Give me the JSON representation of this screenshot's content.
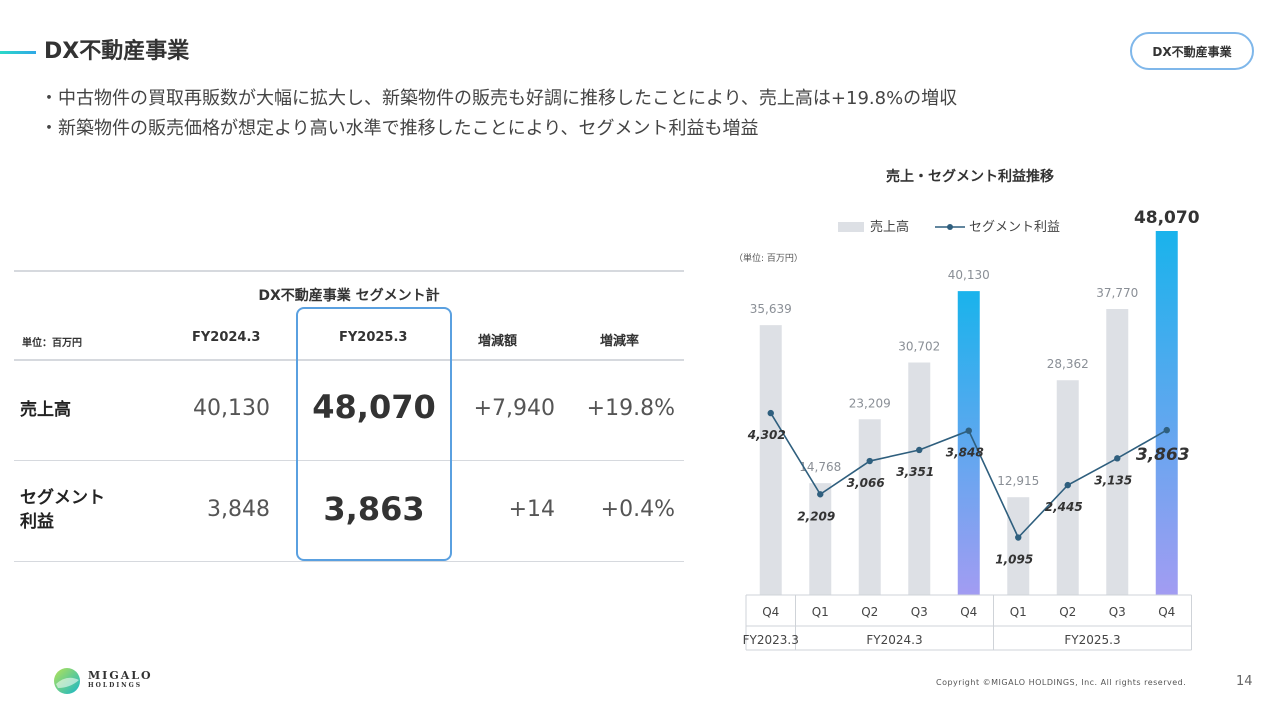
{
  "header": {
    "title": "DX不動産事業",
    "badge": "DX不動産事業"
  },
  "bullets": [
    "・中古物件の買取再販数が大幅に拡大し、新築物件の販売も好調に推移したことにより、売上高は+19.8%の増収",
    "・新築物件の販売価格が想定より高い水準で推移したことにより、セグメント利益も増益"
  ],
  "table": {
    "caption": "DX不動産事業 セグメント計",
    "unit": "単位：百万円",
    "columns": [
      "FY2024.3",
      "FY2025.3",
      "増減額",
      "増減率"
    ],
    "rows": [
      {
        "label": "売上高",
        "fy2024": "40,130",
        "fy2025": "48,070",
        "diff": "+7,940",
        "rate": "+19.8%"
      },
      {
        "label_line1": "セグメント",
        "label_line2": "利益",
        "fy2024": "3,848",
        "fy2025": "3,863",
        "diff": "+14",
        "rate": "+0.4%"
      }
    ]
  },
  "chart_data": {
    "type": "bar",
    "title": "売上・セグメント利益推移",
    "unit_label": "（単位: 百万円）",
    "categories": [
      "Q4",
      "Q1",
      "Q2",
      "Q3",
      "Q4",
      "Q1",
      "Q2",
      "Q3",
      "Q4"
    ],
    "groups": [
      {
        "label": "FY2023.3",
        "span": [
          0,
          0
        ]
      },
      {
        "label": "FY2024.3",
        "span": [
          1,
          4
        ]
      },
      {
        "label": "FY2025.3",
        "span": [
          5,
          8
        ]
      }
    ],
    "series": [
      {
        "name": "売上高",
        "type": "bar",
        "values": [
          35639,
          14768,
          23209,
          30702,
          40130,
          12915,
          28362,
          37770,
          48070
        ],
        "labels": [
          "35,639",
          "14,768",
          "23,209",
          "30,702",
          "40,130",
          "12,915",
          "28,362",
          "37,770",
          "48,070"
        ],
        "highlight": [
          4,
          8
        ]
      },
      {
        "name": "セグメント利益",
        "type": "line",
        "values": [
          4302,
          2209,
          3066,
          3351,
          3848,
          1095,
          2445,
          3135,
          3863
        ],
        "labels": [
          "4,302",
          "2,209",
          "3,066",
          "3,351",
          "3,848",
          "1,095",
          "2,445",
          "3,135",
          "3,863"
        ]
      }
    ],
    "colors": {
      "bar": "#dde0e5",
      "highlight_top": "#19b3ec",
      "highlight_bottom": "#a29cf2",
      "line": "#2f5f7e",
      "bar_label": "#8a8f96"
    }
  },
  "footer": {
    "logo_line1": "MIGALO",
    "logo_line2": "HOLDINGS",
    "copyright": "Copyright ©MIGALO HOLDINGS, Inc. All rights reserved.",
    "page": "14"
  }
}
